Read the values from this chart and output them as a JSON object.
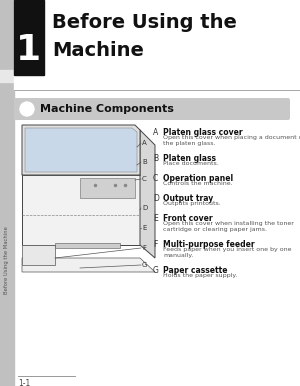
{
  "bg_color": "#ffffff",
  "sidebar_color": "#c0c0c0",
  "chapter_num": "1",
  "chapter_title_line1": "Before Using the",
  "chapter_title_line2": "Machine",
  "section_title": "Machine Components",
  "section_bar_color": "#c8c8c8",
  "page_num": "1-1",
  "sidebar_text": "Before Using the Machine",
  "components": [
    {
      "letter": "A",
      "title": "Platen glass cover",
      "desc": "Open this cover when placing a document on\nthe platen glass."
    },
    {
      "letter": "B",
      "title": "Platen glass",
      "desc": "Place documents."
    },
    {
      "letter": "C",
      "title": "Operation panel",
      "desc": "Controls the machine."
    },
    {
      "letter": "D",
      "title": "Output tray",
      "desc": "Outputs printouts."
    },
    {
      "letter": "E",
      "title": "Front cover",
      "desc": "Open this cover when installing the toner\ncartridge or clearing paper jams."
    },
    {
      "letter": "F",
      "title": "Multi-purpose feeder",
      "desc": "Feeds paper when you insert one by one\nmanually."
    },
    {
      "letter": "G",
      "title": "Paper cassette",
      "desc": "Holds the paper supply."
    }
  ]
}
